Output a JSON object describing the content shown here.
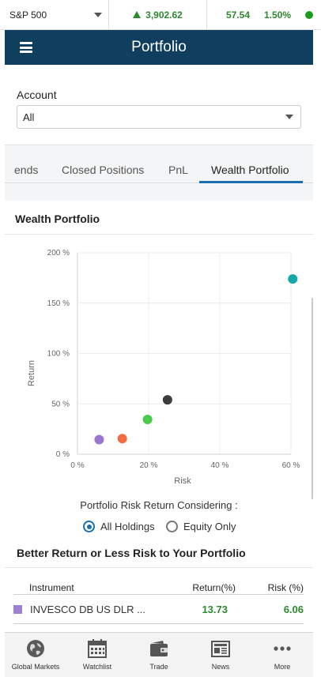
{
  "ticker": {
    "index_name": "S&P 500",
    "price": "3,902.62",
    "change": "57.54",
    "change_pct": "1.50%",
    "status_color": "#1c9c1c"
  },
  "header": {
    "title": "Portfolio"
  },
  "account": {
    "label": "Account",
    "selected": "All"
  },
  "tabs": [
    {
      "label": "ends",
      "active": false
    },
    {
      "label": "Closed Positions",
      "active": false
    },
    {
      "label": "PnL",
      "active": false
    },
    {
      "label": "Wealth Portfolio",
      "active": true
    }
  ],
  "wealth": {
    "title": "Wealth Portfolio",
    "chart_data": {
      "type": "scatter",
      "xlabel": "Risk",
      "ylabel": "Return",
      "xlim": [
        0,
        60
      ],
      "ylim": [
        0,
        200
      ],
      "x_ticks": [
        "0 %",
        "20 %",
        "40 %",
        "60 %"
      ],
      "y_ticks": [
        "0 %",
        "50 %",
        "100 %",
        "150 %",
        "200 %"
      ],
      "grid": true,
      "points": [
        {
          "x": 6.1,
          "y": 14.5,
          "color": "#9b75cf"
        },
        {
          "x": 12.6,
          "y": 15.5,
          "color": "#f26b43"
        },
        {
          "x": 19.7,
          "y": 34.5,
          "color": "#4bc94b"
        },
        {
          "x": 25.3,
          "y": 54,
          "color": "#3c3c3c"
        },
        {
          "x": 60.5,
          "y": 174,
          "color": "#16a7a8"
        }
      ]
    },
    "considering_label": "Portfolio Risk Return Considering :",
    "options": [
      {
        "label": "All Holdings",
        "selected": true
      },
      {
        "label": "Equity Only",
        "selected": false
      }
    ]
  },
  "better": {
    "title": "Better Return or Less Risk to Your Portfolio",
    "columns": [
      "Instrument",
      "Return(%)",
      "Risk (%)"
    ],
    "rows": [
      {
        "instrument": "INVESCO DB US DLR ...",
        "return": "13.73",
        "risk": "6.06",
        "color": "#9f7fcf"
      }
    ]
  },
  "bottom_nav": [
    {
      "label": "Global Markets",
      "icon": "globe-icon"
    },
    {
      "label": "Watchlist",
      "icon": "calendar-grid-icon"
    },
    {
      "label": "Trade",
      "icon": "wallet-icon"
    },
    {
      "label": "News",
      "icon": "newspaper-icon"
    },
    {
      "label": "More",
      "icon": "more-dots-icon"
    }
  ]
}
